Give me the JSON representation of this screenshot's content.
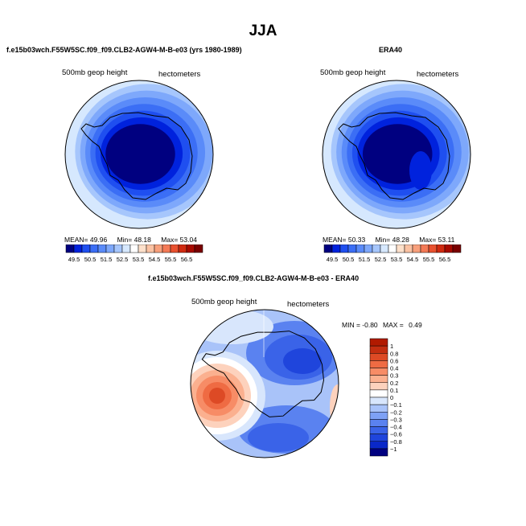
{
  "page": {
    "title": "JJA"
  },
  "chart_data": [
    {
      "type": "heatmap",
      "projection": "south-polar stereographic",
      "title": "f.e15b03wch.F55W5SC.f09_f09.CLB2-AGW4-M-B-e03 (yrs 1980-1989)",
      "variable_label": "500mb geop height",
      "units_label": "hectometers",
      "stats": {
        "mean_label": "MEAN=",
        "mean": "49.96",
        "min_label": "Min=",
        "min": "48.18",
        "max_label": "Max=",
        "max": "53.04"
      },
      "colorbar": {
        "levels": [
          "49.5",
          "50.5",
          "51.5",
          "52.5",
          "53.5",
          "54.5",
          "55.5",
          "56.5"
        ],
        "colors": [
          "#000080",
          "#0022dd",
          "#1f4ff0",
          "#3b6ef5",
          "#5a8bf9",
          "#7ea8fb",
          "#a6c6fc",
          "#d6e8fe",
          "#ffffff",
          "#fde0ca",
          "#fbc2a3",
          "#f8a07c",
          "#f47a56",
          "#e9512f",
          "#d02a10",
          "#a80a00",
          "#7a0000"
        ]
      },
      "fields": {
        "band_colors": [
          "#d6e8fe",
          "#a6c6fc",
          "#7ea8fb",
          "#5a8bf9",
          "#3b6ef5",
          "#1f4ff0",
          "#0022dd",
          "#000080"
        ],
        "core_value_range": [
          48.18,
          49.5
        ]
      }
    },
    {
      "type": "heatmap",
      "projection": "south-polar stereographic",
      "title": "ERA40",
      "variable_label": "500mb geop height",
      "units_label": "hectometers",
      "stats": {
        "mean_label": "MEAN=",
        "mean": "50.33",
        "min_label": "Min=",
        "min": "48.28",
        "max_label": "Max=",
        "max": "53.11"
      },
      "colorbar": {
        "levels": [
          "49.5",
          "50.5",
          "51.5",
          "52.5",
          "53.5",
          "54.5",
          "55.5",
          "56.5"
        ],
        "colors": [
          "#000080",
          "#0022dd",
          "#1f4ff0",
          "#3b6ef5",
          "#5a8bf9",
          "#7ea8fb",
          "#a6c6fc",
          "#d6e8fe",
          "#ffffff",
          "#fde0ca",
          "#fbc2a3",
          "#f8a07c",
          "#f47a56",
          "#e9512f",
          "#d02a10",
          "#a80a00",
          "#7a0000"
        ]
      }
    },
    {
      "type": "heatmap",
      "projection": "south-polar stereographic",
      "title": "f.e15b03wch.F55W5SC.f09_f09.CLB2-AGW4-M-B-e03 - ERA40",
      "variable_label": "500mb geop height",
      "units_label": "hectometers",
      "stats": {
        "min_label": "MIN =",
        "min": "-0.80",
        "max_label": "MAX =",
        "max": "0.49"
      },
      "colorbar": {
        "levels": [
          "1",
          "0.8",
          "0.6",
          "0.4",
          "0.3",
          "0.2",
          "0.1",
          "0",
          "−0.1",
          "−0.2",
          "−0.3",
          "−0.4",
          "−0.6",
          "−0.8",
          "−1"
        ],
        "colors": [
          "#b11a00",
          "#c32e10",
          "#dd4a25",
          "#ef6b43",
          "#f78c66",
          "#fbb08f",
          "#fdd2bd",
          "#ffffff",
          "#d8e6fc",
          "#a9c3f9",
          "#7ea1f5",
          "#5a82f0",
          "#3a63e8",
          "#1f45dc",
          "#0a28c8",
          "#000080"
        ]
      },
      "features": {
        "positive_anomaly_center": 0.49,
        "negative_anomaly_center": -0.8
      }
    }
  ]
}
